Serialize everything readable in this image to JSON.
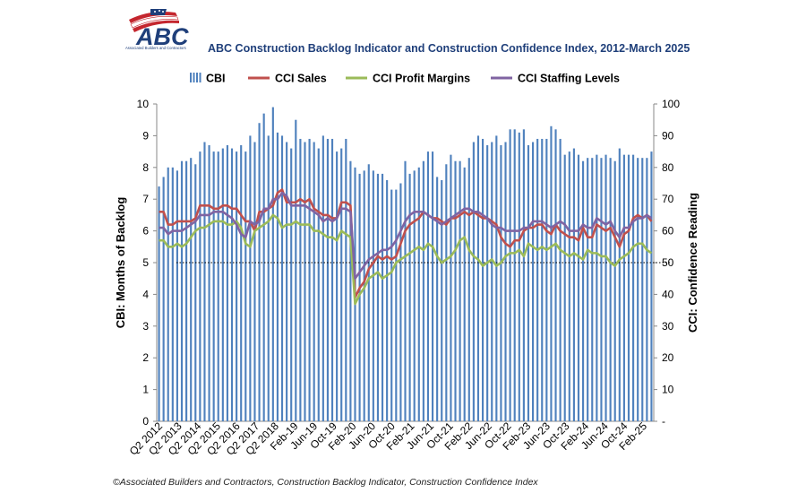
{
  "header": {
    "logo_text": "ABC",
    "logo_subtext": "Associated Builders and Contractors",
    "title": "ABC Construction Backlog Indicator and Construction Confidence Index, 2012-March 2025"
  },
  "footer": {
    "source": "©Associated Builders and Contractors, Construction Backlog Indicator, Construction Confidence Index"
  },
  "colors": {
    "cbi": "#4f81bd",
    "cci_sales": "#c0504d",
    "cci_profit": "#9bbb59",
    "cci_staffing": "#8064a2",
    "title": "#1f3f7a"
  },
  "chart_data": {
    "type": "bar+line",
    "legend": [
      "CBI",
      "CCI Sales",
      "CCI Profit Margins",
      "CCI Staffing Levels"
    ],
    "legend_position": "top",
    "y_left": {
      "label": "CBI: Months of Backlog",
      "min": 0,
      "max": 10,
      "ticks": [
        "0",
        "1",
        "2",
        "3",
        "4",
        "5",
        "6",
        "7",
        "8",
        "9",
        "10"
      ]
    },
    "y_right": {
      "label": "CCI: Confidence Reading",
      "min": 0,
      "max": 100,
      "ticks": [
        "-",
        "10",
        "20",
        "30",
        "40",
        "50",
        "60",
        "70",
        "80",
        "90",
        "100"
      ]
    },
    "x_tick_labels": [
      "Q2 2012",
      "Q2 2013",
      "Q2 2014",
      "Q2 2015",
      "Q2 2016",
      "Q2 2017",
      "Q2 2018",
      "Feb-19",
      "Jun-19",
      "Oct-19",
      "Feb-20",
      "Jun-20",
      "Oct-20",
      "Feb-21",
      "Jun-21",
      "Oct-21",
      "Feb-22",
      "Jun-22",
      "Oct-22",
      "Feb-23",
      "Jun-23",
      "Oct-23",
      "Feb-24",
      "Jun-24",
      "Oct-24",
      "Feb-25"
    ],
    "reference_line": {
      "axis": "right",
      "value": 50,
      "style": "dotted"
    },
    "cbi": [
      7.4,
      7.7,
      8.0,
      8.0,
      7.9,
      8.2,
      8.2,
      8.3,
      8.1,
      8.5,
      8.8,
      8.7,
      8.5,
      8.5,
      8.6,
      8.7,
      8.6,
      8.5,
      8.7,
      8.5,
      9.0,
      8.8,
      9.4,
      9.7,
      9.0,
      9.9,
      9.1,
      9.0,
      8.8,
      8.6,
      9.5,
      8.9,
      8.8,
      8.9,
      8.8,
      8.6,
      9.0,
      8.9,
      8.9,
      8.5,
      8.6,
      8.9,
      8.2,
      8.0,
      7.8,
      7.9,
      8.1,
      7.9,
      7.8,
      7.8,
      7.6,
      7.3,
      7.3,
      7.5,
      8.2,
      7.8,
      7.9,
      8.0,
      8.2,
      8.5,
      8.5,
      7.7,
      7.6,
      8.1,
      8.4,
      8.2,
      8.2,
      8.0,
      8.3,
      8.8,
      9.0,
      8.9,
      8.7,
      8.8,
      9.0,
      8.7,
      8.8,
      9.2,
      9.2,
      9.1,
      9.2,
      8.7,
      8.8,
      8.9,
      8.9,
      8.9,
      9.3,
      9.2,
      8.9,
      8.4,
      8.5,
      8.6,
      8.4,
      8.2,
      8.3,
      8.3,
      8.4,
      8.3,
      8.4,
      8.3,
      8.2,
      8.6,
      8.4,
      8.4,
      8.4,
      8.3,
      8.3,
      8.3,
      8.5
    ],
    "series": [
      {
        "name": "CCI Sales",
        "values": [
          66,
          66,
          62,
          62,
          63,
          63,
          63,
          63,
          64,
          68,
          68,
          68,
          67,
          67,
          68,
          68,
          67,
          67,
          65,
          63,
          63,
          60,
          66,
          66,
          67,
          68,
          72,
          73,
          69,
          69,
          69,
          70,
          69,
          70,
          67,
          66,
          65,
          65,
          64,
          64,
          69,
          69,
          68,
          39,
          42,
          44,
          48,
          50,
          52,
          51,
          52,
          51,
          52,
          56,
          60,
          62,
          63,
          64,
          66,
          65,
          64,
          64,
          63,
          62,
          64,
          64,
          65,
          66,
          65,
          66,
          65,
          64,
          64,
          63,
          62,
          58,
          56,
          55,
          57,
          57,
          60,
          61,
          61,
          62,
          62,
          60,
          59,
          62,
          60,
          59,
          58,
          58,
          57,
          61,
          58,
          58,
          62,
          61,
          60,
          61,
          58,
          55,
          59,
          60,
          64,
          65,
          64,
          65,
          63
        ]
      },
      {
        "name": "CCI Profit Margins",
        "values": [
          57,
          57,
          55,
          55,
          56,
          55,
          56,
          58,
          60,
          61,
          61,
          62,
          63,
          63,
          63,
          62,
          62,
          63,
          61,
          56,
          55,
          60,
          61,
          62,
          63,
          65,
          64,
          61,
          62,
          62,
          63,
          62,
          62,
          62,
          60,
          60,
          59,
          58,
          58,
          57,
          60,
          59,
          58,
          37,
          40,
          42,
          45,
          46,
          47,
          45,
          46,
          47,
          50,
          51,
          52,
          53,
          54,
          55,
          54,
          56,
          55,
          52,
          50,
          51,
          52,
          54,
          57,
          58,
          54,
          52,
          51,
          49,
          50,
          51,
          49,
          50,
          52,
          53,
          53,
          54,
          52,
          56,
          55,
          54,
          55,
          54,
          55,
          56,
          54,
          53,
          52,
          53,
          52,
          51,
          54,
          53,
          53,
          52,
          52,
          50,
          49,
          51,
          52,
          53,
          55,
          56,
          56,
          54,
          53
        ]
      },
      {
        "name": "CCI Staffing Levels",
        "values": [
          61,
          61,
          59,
          60,
          60,
          60,
          61,
          62,
          63,
          65,
          65,
          65,
          66,
          66,
          66,
          65,
          64,
          62,
          59,
          58,
          63,
          62,
          63,
          67,
          67,
          70,
          70,
          72,
          71,
          68,
          68,
          68,
          68,
          67,
          66,
          65,
          63,
          64,
          63,
          64,
          67,
          67,
          66,
          45,
          47,
          49,
          51,
          52,
          53,
          54,
          54,
          55,
          57,
          60,
          63,
          65,
          66,
          66,
          66,
          65,
          64,
          63,
          62,
          63,
          64,
          65,
          66,
          67,
          67,
          66,
          66,
          65,
          64,
          62,
          61,
          61,
          60,
          60,
          60,
          60,
          61,
          61,
          63,
          63,
          63,
          62,
          61,
          62,
          63,
          62,
          60,
          60,
          60,
          62,
          61,
          61,
          64,
          63,
          62,
          63,
          60,
          58,
          61,
          61,
          63,
          64,
          64,
          65,
          64
        ]
      }
    ]
  }
}
